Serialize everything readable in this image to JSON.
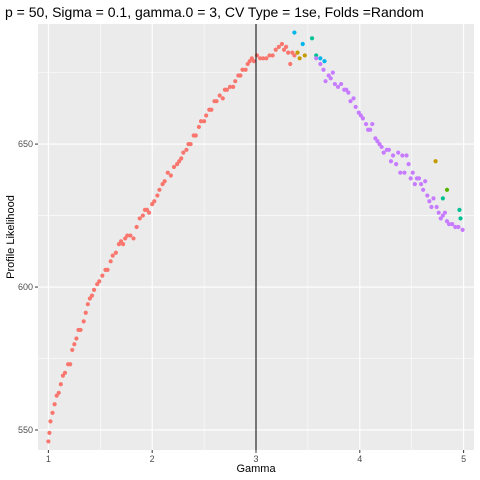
{
  "chart_data": {
    "type": "scatter",
    "title": "p = 50, Sigma = 0.1, gamma.0 = 3, CV Type = 1se, Folds =Random",
    "xlabel": "Gamma",
    "ylabel": "Profile Likelihood",
    "xlim": [
      0.9,
      5.1
    ],
    "ylim": [
      543,
      692
    ],
    "xticks": [
      1,
      2,
      3,
      4,
      5
    ],
    "yticks": [
      550,
      600,
      650
    ],
    "grid": true,
    "panel_background": "#ebebeb",
    "grid_color": "#ffffff",
    "vline": {
      "x": 3,
      "color": "#000000"
    },
    "series": [
      {
        "color": "#f8766d",
        "points": [
          [
            1.0,
            546
          ],
          [
            1.01,
            549
          ],
          [
            1.02,
            553
          ],
          [
            1.04,
            556
          ],
          [
            1.06,
            559
          ],
          [
            1.08,
            562
          ],
          [
            1.1,
            563
          ],
          [
            1.12,
            566
          ],
          [
            1.14,
            569
          ],
          [
            1.16,
            570
          ],
          [
            1.19,
            573
          ],
          [
            1.21,
            573
          ],
          [
            1.23,
            578
          ],
          [
            1.25,
            580
          ],
          [
            1.27,
            582
          ],
          [
            1.29,
            585
          ],
          [
            1.31,
            585
          ],
          [
            1.34,
            588
          ],
          [
            1.36,
            591
          ],
          [
            1.38,
            594
          ],
          [
            1.4,
            596
          ],
          [
            1.42,
            597
          ],
          [
            1.44,
            599
          ],
          [
            1.47,
            601
          ],
          [
            1.49,
            602
          ],
          [
            1.52,
            604
          ],
          [
            1.55,
            606
          ],
          [
            1.57,
            606
          ],
          [
            1.6,
            609
          ],
          [
            1.62,
            611
          ],
          [
            1.65,
            612
          ],
          [
            1.68,
            615
          ],
          [
            1.7,
            616
          ],
          [
            1.72,
            615
          ],
          [
            1.74,
            617
          ],
          [
            1.76,
            618
          ],
          [
            1.79,
            618
          ],
          [
            1.82,
            617
          ],
          [
            1.85,
            621
          ],
          [
            1.88,
            624
          ],
          [
            1.91,
            625
          ],
          [
            1.93,
            627
          ],
          [
            1.95,
            627
          ],
          [
            1.97,
            626
          ],
          [
            2.0,
            629
          ],
          [
            2.02,
            630
          ],
          [
            2.05,
            632
          ],
          [
            2.07,
            634
          ],
          [
            2.1,
            636
          ],
          [
            2.12,
            637
          ],
          [
            2.15,
            640
          ],
          [
            2.18,
            639
          ],
          [
            2.21,
            642
          ],
          [
            2.24,
            643
          ],
          [
            2.26,
            644
          ],
          [
            2.28,
            645
          ],
          [
            2.3,
            647
          ],
          [
            2.33,
            648
          ],
          [
            2.35,
            650
          ],
          [
            2.37,
            650
          ],
          [
            2.4,
            653
          ],
          [
            2.42,
            653
          ],
          [
            2.45,
            656
          ],
          [
            2.47,
            658
          ],
          [
            2.5,
            658
          ],
          [
            2.52,
            660
          ],
          [
            2.55,
            662
          ],
          [
            2.57,
            662
          ],
          [
            2.6,
            665
          ],
          [
            2.62,
            665
          ],
          [
            2.65,
            667
          ],
          [
            2.68,
            666
          ],
          [
            2.7,
            669
          ],
          [
            2.72,
            669
          ],
          [
            2.75,
            670
          ],
          [
            2.78,
            670
          ],
          [
            2.8,
            672
          ],
          [
            2.83,
            674
          ],
          [
            2.85,
            674
          ],
          [
            2.87,
            676
          ],
          [
            2.9,
            676
          ],
          [
            2.92,
            678
          ],
          [
            2.94,
            679
          ],
          [
            2.96,
            680
          ],
          [
            2.98,
            679
          ],
          [
            3.01,
            681
          ],
          [
            3.04,
            680
          ],
          [
            3.07,
            680
          ],
          [
            3.1,
            680
          ],
          [
            3.13,
            681
          ],
          [
            3.16,
            681
          ],
          [
            3.19,
            683
          ],
          [
            3.22,
            684
          ],
          [
            3.25,
            685
          ],
          [
            3.27,
            683
          ],
          [
            3.29,
            684
          ],
          [
            3.31,
            682
          ],
          [
            3.33,
            678
          ],
          [
            3.35,
            682
          ],
          [
            3.37,
            681
          ]
        ]
      },
      {
        "color": "#c49a00",
        "points": [
          [
            3.4,
            682
          ],
          [
            3.42,
            680
          ],
          [
            3.47,
            681
          ],
          [
            4.73,
            644
          ]
        ]
      },
      {
        "color": "#53b400",
        "points": [
          [
            4.84,
            634
          ]
        ]
      },
      {
        "color": "#00c094",
        "points": [
          [
            3.54,
            687
          ],
          [
            3.58,
            681
          ],
          [
            4.8,
            631
          ],
          [
            4.96,
            627
          ],
          [
            4.97,
            624
          ]
        ]
      },
      {
        "color": "#00b6eb",
        "points": [
          [
            3.37,
            689
          ],
          [
            3.45,
            685
          ],
          [
            3.62,
            680
          ],
          [
            3.66,
            679
          ]
        ]
      },
      {
        "color": "#c77cff",
        "points": [
          [
            3.58,
            680
          ],
          [
            3.62,
            678
          ],
          [
            3.65,
            676
          ],
          [
            3.67,
            672
          ],
          [
            3.7,
            674
          ],
          [
            3.72,
            673
          ],
          [
            3.74,
            675
          ],
          [
            3.76,
            671
          ],
          [
            3.79,
            670
          ],
          [
            3.82,
            671
          ],
          [
            3.85,
            669
          ],
          [
            3.87,
            669
          ],
          [
            3.89,
            668
          ],
          [
            3.91,
            665
          ],
          [
            3.94,
            666
          ],
          [
            3.96,
            663
          ],
          [
            3.99,
            661
          ],
          [
            4.01,
            660
          ],
          [
            4.03,
            659
          ],
          [
            4.06,
            657
          ],
          [
            4.08,
            655
          ],
          [
            4.1,
            655
          ],
          [
            4.12,
            657
          ],
          [
            4.15,
            652
          ],
          [
            4.17,
            651
          ],
          [
            4.19,
            650
          ],
          [
            4.21,
            649
          ],
          [
            4.23,
            647
          ],
          [
            4.26,
            648
          ],
          [
            4.28,
            648
          ],
          [
            4.3,
            644
          ],
          [
            4.32,
            646
          ],
          [
            4.35,
            643
          ],
          [
            4.37,
            647
          ],
          [
            4.39,
            640
          ],
          [
            4.41,
            646
          ],
          [
            4.43,
            640
          ],
          [
            4.45,
            646
          ],
          [
            4.47,
            643
          ],
          [
            4.49,
            638
          ],
          [
            4.51,
            640
          ],
          [
            4.53,
            636
          ],
          [
            4.55,
            638
          ],
          [
            4.57,
            638
          ],
          [
            4.59,
            636
          ],
          [
            4.61,
            634
          ],
          [
            4.63,
            637
          ],
          [
            4.65,
            632
          ],
          [
            4.67,
            630
          ],
          [
            4.69,
            628
          ],
          [
            4.71,
            631
          ],
          [
            4.74,
            628
          ],
          [
            4.76,
            626
          ],
          [
            4.78,
            624
          ],
          [
            4.8,
            625
          ],
          [
            4.82,
            626
          ],
          [
            4.84,
            623
          ],
          [
            4.86,
            622
          ],
          [
            4.89,
            622
          ],
          [
            4.92,
            621
          ],
          [
            4.95,
            621
          ],
          [
            4.99,
            620
          ]
        ]
      }
    ]
  }
}
